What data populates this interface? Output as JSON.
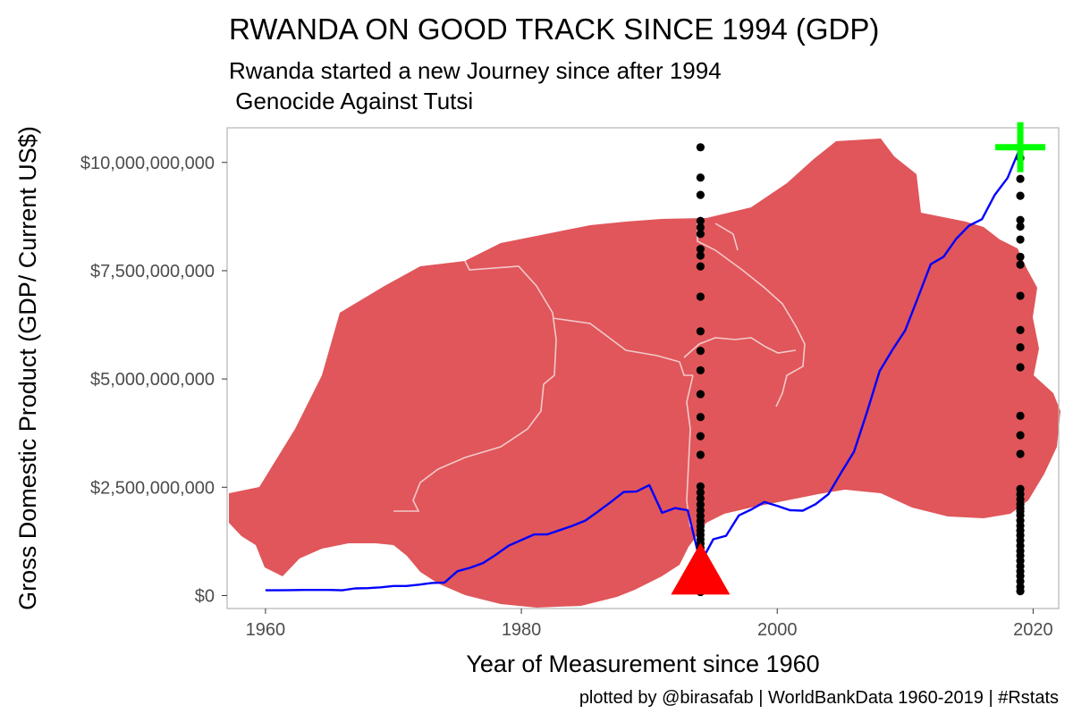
{
  "chart_data": {
    "type": "line",
    "title": "RWANDA ON GOOD TRACK SINCE 1994 (GDP)",
    "subtitle_lines": [
      "Rwanda started a new Journey since after 1994",
      " Genocide Against Tutsi"
    ],
    "xlabel": "Year of Measurement since 1960",
    "ylabel": "Gross Domestic Product (GDP/ Current US$)",
    "caption": "plotted by @birasafab | WorldBankData 1960-2019 | #Rstats",
    "xlim": [
      1957,
      2022
    ],
    "ylim": [
      -300000000,
      10800000000
    ],
    "x_ticks": [
      1960,
      1980,
      2000,
      2020
    ],
    "x_tick_labels": [
      "1960",
      "1980",
      "2000",
      "2020"
    ],
    "y_ticks": [
      0,
      2500000000,
      5000000000,
      7500000000,
      10000000000
    ],
    "y_tick_labels": [
      "$0",
      "$2,500,000,000",
      "$5,000,000,000",
      "$7,500,000,000",
      "$10,000,000,000"
    ],
    "grid": false,
    "background_map": "Rwanda provinces",
    "colors": {
      "map": "#e0565a",
      "map_border": "#f3c9ca",
      "line": "#0000ff",
      "points": "#000000",
      "triangle": "#ff0000",
      "plus": "#00ff00",
      "panel_border": "#b3b3b3"
    },
    "series": [
      {
        "x": [
          1960,
          1961,
          1962,
          1963,
          1964,
          1965,
          1966,
          1967,
          1968,
          1969,
          1970,
          1971,
          1972,
          1973,
          1974,
          1975,
          1976,
          1977,
          1978,
          1979,
          1980,
          1981,
          1982,
          1983,
          1984,
          1985,
          1986,
          1987,
          1988,
          1989,
          1990,
          1991,
          1992,
          1993,
          1994,
          1995,
          1996,
          1997,
          1998,
          1999,
          2000,
          2001,
          2002,
          2003,
          2004,
          2005,
          2006,
          2007,
          2008,
          2009,
          2010,
          2011,
          2012,
          2013,
          2014,
          2015,
          2016,
          2017,
          2018,
          2019
        ],
        "y": [
          120000000,
          120000000,
          125000000,
          130000000,
          130000000,
          130000000,
          120000000,
          165000000,
          170000000,
          190000000,
          220000000,
          220000000,
          250000000,
          290000000,
          300000000,
          560000000,
          640000000,
          750000000,
          940000000,
          1150000000,
          1280000000,
          1410000000,
          1410000000,
          1510000000,
          1610000000,
          1730000000,
          1940000000,
          2160000000,
          2390000000,
          2400000000,
          2550000000,
          1910000000,
          2020000000,
          1970000000,
          750000000,
          1300000000,
          1380000000,
          1850000000,
          1990000000,
          2160000000,
          2070000000,
          1970000000,
          1960000000,
          2110000000,
          2340000000,
          2840000000,
          3320000000,
          4220000000,
          5180000000,
          5670000000,
          6120000000,
          6880000000,
          7650000000,
          7820000000,
          8240000000,
          8540000000,
          8690000000,
          9250000000,
          9640000000,
          10350000000
        ]
      }
    ],
    "point_columns": [
      {
        "x": 1994,
        "y": [
          80000000,
          120000000,
          160000000,
          210000000,
          270000000,
          340000000,
          420000000,
          510000000,
          600000000,
          700000000,
          800000000,
          900000000,
          1000000000,
          1100000000,
          1200000000,
          1300000000,
          1400000000,
          1500000000,
          1600000000,
          1720000000,
          1840000000,
          1970000000,
          2100000000,
          2240000000,
          2380000000,
          2520000000,
          3250000000,
          3680000000,
          4120000000,
          4650000000,
          5200000000,
          5650000000,
          6100000000,
          6900000000,
          7600000000,
          7850000000,
          8000000000,
          8350000000,
          8500000000,
          8650000000,
          9250000000,
          9650000000,
          10350000000
        ]
      },
      {
        "x": 2019,
        "y": [
          100000000,
          200000000,
          330000000,
          450000000,
          560000000,
          680000000,
          800000000,
          920000000,
          1030000000,
          1150000000,
          1270000000,
          1390000000,
          1500000000,
          1610000000,
          1730000000,
          1850000000,
          1950000000,
          2020000000,
          2110000000,
          2220000000,
          2340000000,
          2460000000,
          3270000000,
          3700000000,
          4150000000,
          5270000000,
          5730000000,
          6130000000,
          6920000000,
          7640000000,
          7820000000,
          8220000000,
          8520000000,
          8670000000,
          9230000000,
          9620000000,
          10100000000,
          10350000000
        ]
      }
    ],
    "annotations": [
      {
        "shape": "triangle",
        "x": 1994,
        "y": 600000000
      },
      {
        "shape": "plus",
        "x": 2019,
        "y": 10350000000
      }
    ]
  }
}
